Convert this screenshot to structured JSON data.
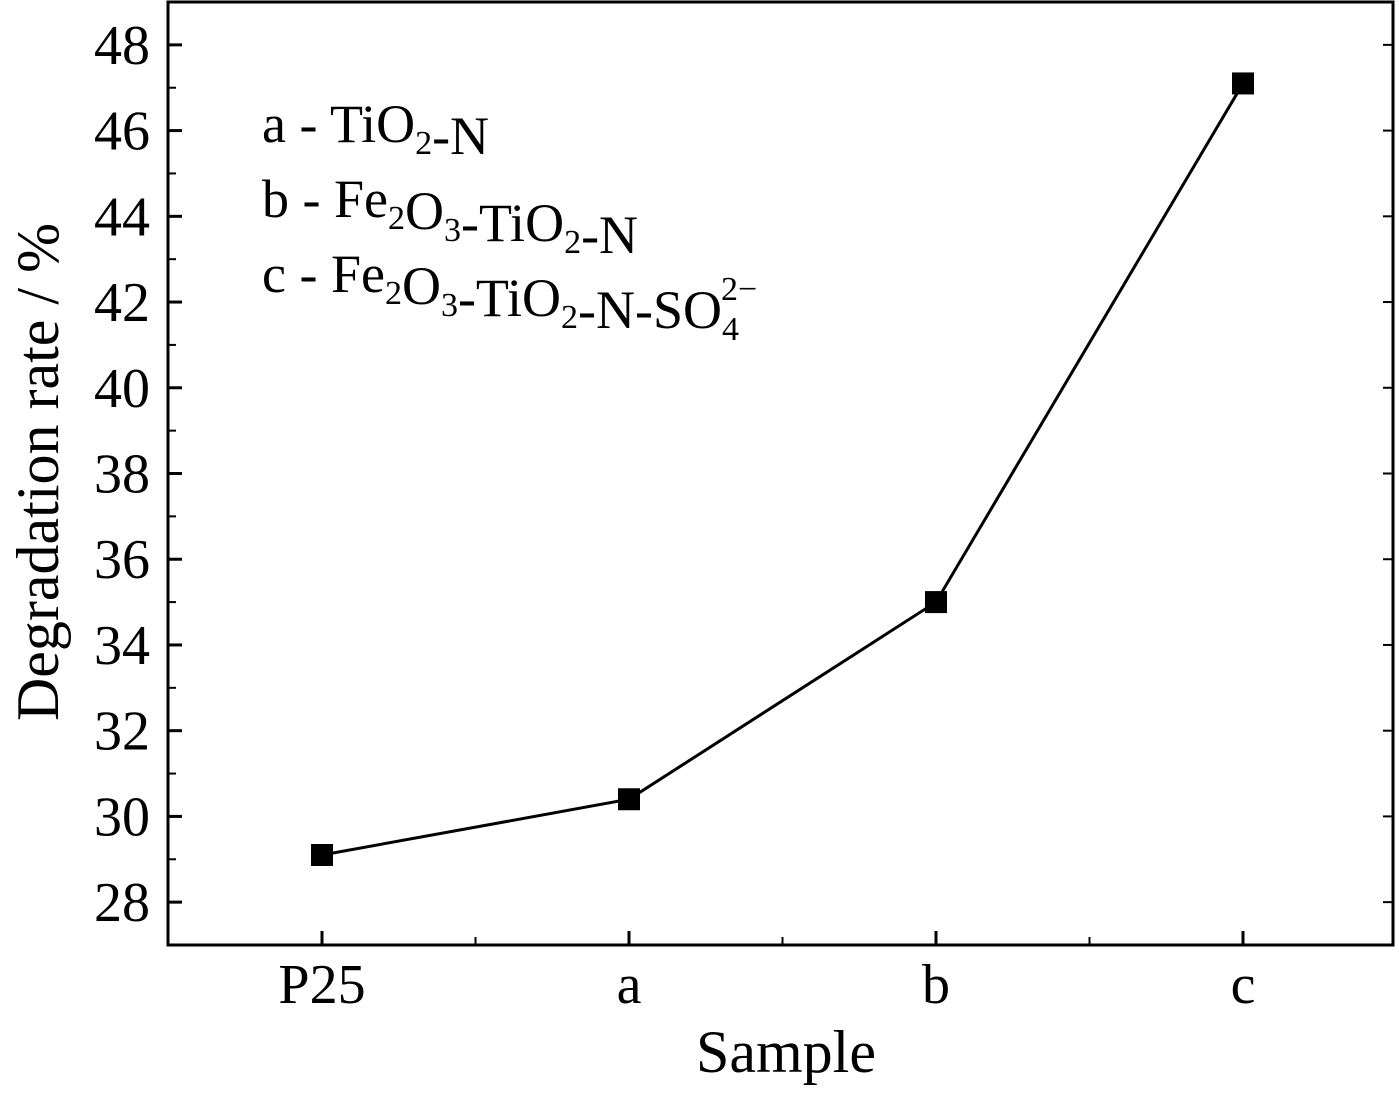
{
  "chart_data": {
    "type": "line",
    "categories": [
      "P25",
      "a",
      "b",
      "c"
    ],
    "series": [
      {
        "values": [
          29.1,
          30.4,
          35.0,
          47.1
        ],
        "color": "#000000",
        "marker": "square"
      }
    ],
    "xlabel": "Sample",
    "ylabel": "Degradation rate / %",
    "ylim": [
      27,
      49
    ],
    "y_ticks": [
      28,
      30,
      32,
      34,
      36,
      38,
      40,
      42,
      44,
      46,
      48
    ],
    "grid": false,
    "legend": {
      "placement": "top-left",
      "entries": [
        {
          "key": "a",
          "sep": "-",
          "label": [
            [
              "Ti",
              ""
            ],
            [
              "O",
              "2"
            ],
            [
              "-N",
              ""
            ]
          ]
        },
        {
          "key": "b",
          "sep": "-",
          "label": [
            [
              "Fe",
              "2"
            ],
            [
              "O",
              "3"
            ],
            [
              "-Ti",
              ""
            ],
            [
              "O",
              "2"
            ],
            [
              "-N",
              ""
            ]
          ]
        },
        {
          "key": "c",
          "sep": "-",
          "label": [
            [
              "Fe",
              "2"
            ],
            [
              "O",
              "3"
            ],
            [
              "-Ti",
              ""
            ],
            [
              "O",
              "2"
            ],
            [
              "-N-S",
              ""
            ],
            [
              "O",
              "4"
            ]
          ],
          "superscript": "2−"
        }
      ]
    }
  }
}
